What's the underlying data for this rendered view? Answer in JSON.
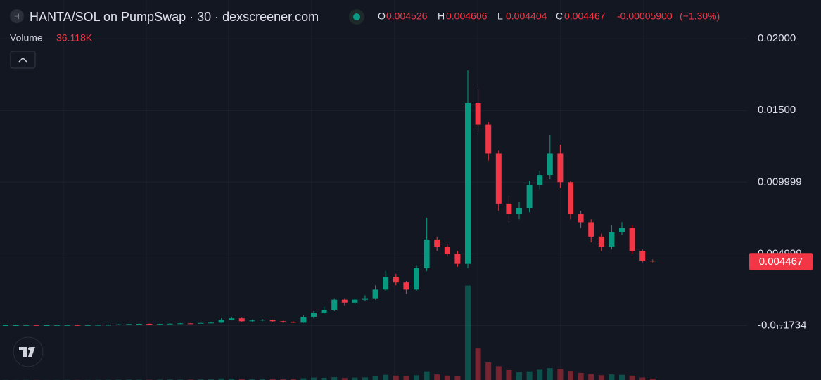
{
  "chart_data": {
    "type": "candlestick",
    "token_icon_letter": "H",
    "title": "HANTA/SOL on PumpSwap · 30 · dexscreener.com",
    "ohlc_legend": [
      {
        "label": "O",
        "value": 0.004526
      },
      {
        "label": "H",
        "value": 0.004606
      },
      {
        "label": "L",
        "value": 0.004404
      },
      {
        "label": "C",
        "value": 0.004467
      }
    ],
    "change": {
      "value": -5.9e-05,
      "label": "-0.00005900"
    },
    "change_percent": {
      "value": -1.3,
      "label": "(−1.30%)"
    },
    "volume_legend": {
      "label": "Volume",
      "value": {
        "value": 36118,
        "label": "36.118K"
      }
    },
    "last_price": 0.004467,
    "up_color": "#089981",
    "down_color": "#f23645",
    "grid": true,
    "ylim": [
      -0.0038,
      0.0227
    ],
    "yticks": [
      {
        "value": -1.734e-18,
        "label": "-0.0₁₇1734"
      },
      0.004999,
      0.009999,
      {
        "value": 0.015,
        "label": "0.01500"
      },
      {
        "value": 0.02,
        "label": "0.02000"
      }
    ],
    "open": [
      2e-05,
      2e-05,
      2e-05,
      3e-05,
      2e-05,
      2e-05,
      3e-05,
      3e-05,
      2e-05,
      3e-05,
      4e-05,
      5e-05,
      8e-05,
      0.0001,
      0.00012,
      0.0001,
      0.00011,
      0.00013,
      0.00015,
      0.00014,
      0.00018,
      0.0002,
      0.0004,
      0.0005,
      0.0003,
      0.00035,
      0.0004,
      0.0003,
      0.00025,
      0.0002,
      0.0006,
      0.0009,
      0.0011,
      0.0018,
      0.0016,
      0.0018,
      0.0019,
      0.0025,
      0.0034,
      0.003,
      0.0025,
      0.004,
      0.006,
      0.0055,
      0.005,
      0.0043,
      0.0155,
      0.014,
      0.012,
      0.0085,
      0.0078,
      0.0082,
      0.0098,
      0.0105,
      0.012,
      0.01,
      0.0078,
      0.0072,
      0.0062,
      0.0055,
      0.0065,
      0.0068,
      0.0052,
      0.004526
    ],
    "high": [
      4e-05,
      4e-05,
      5e-05,
      4e-05,
      4e-05,
      5e-05,
      5e-05,
      4e-05,
      5e-05,
      6e-05,
      7e-05,
      0.0001,
      0.00013,
      0.00015,
      0.00014,
      0.00014,
      0.00016,
      0.00018,
      0.00017,
      0.00021,
      0.00024,
      0.0005,
      0.0006,
      0.00055,
      0.0004,
      0.00045,
      0.00042,
      0.00033,
      0.0003,
      0.0007,
      0.001,
      0.0013,
      0.0019,
      0.0019,
      0.0019,
      0.0021,
      0.0028,
      0.0038,
      0.0036,
      0.0031,
      0.0042,
      0.0075,
      0.0062,
      0.0057,
      0.0052,
      0.0178,
      0.0165,
      0.0142,
      0.0122,
      0.009,
      0.0086,
      0.0101,
      0.0108,
      0.0133,
      0.0126,
      0.0101,
      0.008,
      0.0074,
      0.0064,
      0.007,
      0.0072,
      0.007,
      0.0053,
      0.004606
    ],
    "low": [
      0,
      0,
      1e-05,
      1e-05,
      0,
      1e-05,
      2e-05,
      1e-05,
      1e-05,
      2e-05,
      3e-05,
      4e-05,
      7e-05,
      9e-05,
      9e-05,
      9e-05,
      0.0001,
      0.00012,
      0.00012,
      0.00013,
      0.00017,
      0.00018,
      0.00035,
      0.00025,
      0.00026,
      0.0003,
      0.00026,
      0.0002,
      0.00017,
      0.00018,
      0.0005,
      0.0008,
      0.001,
      0.0014,
      0.0015,
      0.0017,
      0.0018,
      0.0024,
      0.0028,
      0.0022,
      0.0024,
      0.0038,
      0.0052,
      0.0048,
      0.0041,
      0.004,
      0.0135,
      0.0115,
      0.008,
      0.0072,
      0.0074,
      0.0079,
      0.0095,
      0.0102,
      0.0096,
      0.0074,
      0.0068,
      0.0058,
      0.0052,
      0.0053,
      0.0063,
      0.005,
      0.0044,
      0.004404
    ],
    "close": [
      2e-05,
      2e-05,
      3e-05,
      2e-05,
      2e-05,
      3e-05,
      3e-05,
      2e-05,
      3e-05,
      4e-05,
      5e-05,
      8e-05,
      0.0001,
      0.00012,
      0.0001,
      0.00011,
      0.00013,
      0.00015,
      0.00014,
      0.00018,
      0.0002,
      0.0004,
      0.0005,
      0.0003,
      0.00035,
      0.0004,
      0.0003,
      0.00025,
      0.0002,
      0.0006,
      0.0009,
      0.0011,
      0.0018,
      0.0016,
      0.0018,
      0.0019,
      0.0025,
      0.0034,
      0.003,
      0.0025,
      0.004,
      0.006,
      0.0055,
      0.005,
      0.0043,
      0.0155,
      0.014,
      0.012,
      0.0085,
      0.0078,
      0.0082,
      0.0098,
      0.0105,
      0.012,
      0.01,
      0.0078,
      0.0072,
      0.0062,
      0.0055,
      0.0065,
      0.0068,
      0.0052,
      0.004526,
      0.004467
    ],
    "volume": [
      3000,
      2000,
      4000,
      3000,
      2000,
      3000,
      4000,
      3000,
      3000,
      5000,
      6000,
      8000,
      10000,
      9000,
      7000,
      9000,
      12000,
      10000,
      11000,
      14000,
      16000,
      40000,
      30000,
      25000,
      20000,
      18000,
      22000,
      20000,
      25000,
      45000,
      60000,
      55000,
      70000,
      50000,
      60000,
      65000,
      90000,
      130000,
      110000,
      95000,
      120000,
      220000,
      140000,
      110000,
      90000,
      2400000,
      800000,
      450000,
      350000,
      250000,
      200000,
      220000,
      260000,
      300000,
      280000,
      230000,
      180000,
      150000,
      120000,
      140000,
      130000,
      110000,
      60000,
      36118
    ],
    "volume_lim": [
      0,
      2500000
    ]
  }
}
